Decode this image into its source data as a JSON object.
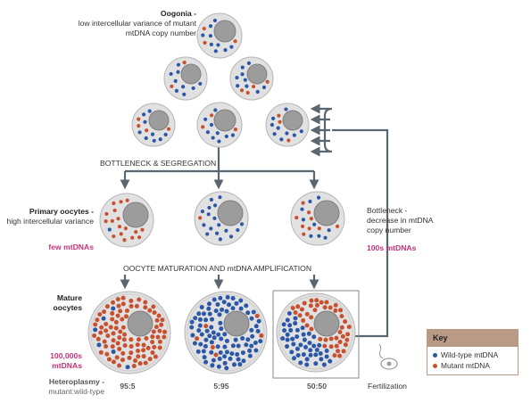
{
  "colors": {
    "wild_type": "#2a57a8",
    "mutant": "#c8502e",
    "cell_fill": "#e1e1e1",
    "nucleus_fill": "#9c9c9c",
    "arrow": "#5b6770",
    "highlight": "#c2327a"
  },
  "labels": {
    "oogonia_title": "Oogonia -",
    "oogonia_desc": "low intercellular variance of mutant mtDNA copy number",
    "bottleneck_segregation": "BOTTLENECK & SEGREGATION",
    "primary_title": "Primary oocytes -",
    "primary_desc": "high intercellular variance",
    "few_mtdnas": "few mtDNAs",
    "maturation": "OOCYTE MATURATION AND mtDNA AMPLIFICATION",
    "mature_title": "Mature oocytes",
    "many_mtdnas": "100,000s mtDNAs",
    "heteroplasmy_title": "Heteroplasmy -",
    "heteroplasmy_desc": "mutant:wild-type",
    "bottleneck_right": "Bottleneck - decrease in mtDNA copy number",
    "hundreds_mtdnas": "100s mtDNAs",
    "fertilization": "Fertilization"
  },
  "ratios": [
    "95:5",
    "5:95",
    "50:50"
  ],
  "key": {
    "title": "Key",
    "items": [
      {
        "label": "Wild-type mtDNA",
        "icon": "blue-dot"
      },
      {
        "label": "Mutant mtDNA",
        "icon": "red-dot"
      }
    ]
  }
}
